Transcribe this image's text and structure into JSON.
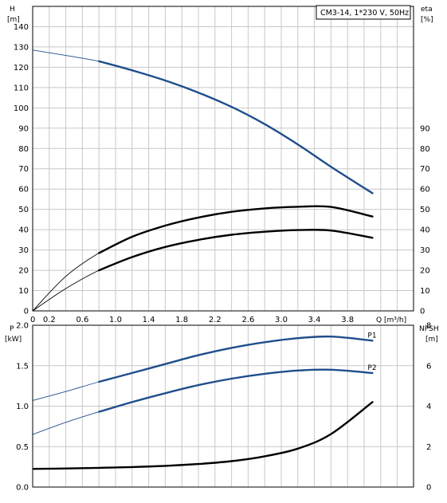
{
  "chart_data": [
    {
      "type": "line",
      "legend": "CM3-14, 1*230 V, 50Hz",
      "x": {
        "label": "Q",
        "unit": "[m³/h]",
        "ticks": [
          "0",
          "0.2",
          "0.6",
          "1.0",
          "1.4",
          "1.8",
          "2.2",
          "2.6",
          "3.0",
          "3.4",
          "3.8"
        ],
        "range": [
          0,
          4.2
        ]
      },
      "y_left": {
        "label": "H",
        "unit": "[m]",
        "ticks": [
          "0",
          "10",
          "20",
          "30",
          "40",
          "50",
          "60",
          "70",
          "80",
          "90",
          "100",
          "110",
          "120",
          "130",
          "140"
        ],
        "range": [
          0,
          150
        ]
      },
      "y_right": {
        "label": "eta",
        "unit": "[%]",
        "ticks": [
          "0",
          "10",
          "20",
          "30",
          "40",
          "50",
          "60",
          "70",
          "80",
          "90"
        ],
        "range": [
          0,
          150
        ]
      },
      "grid": true,
      "series": [
        {
          "axis": "left",
          "color": "#1f4e8c",
          "x": [
            0.0,
            0.8,
            1.2,
            1.6,
            2.0,
            2.4,
            2.8,
            3.2,
            3.6,
            4.1
          ],
          "y": [
            128.5,
            123.0,
            118.5,
            113.5,
            107.5,
            100.5,
            92.0,
            82.0,
            71.0,
            58.0
          ],
          "dense_from": 0.8
        },
        {
          "axis": "right",
          "color": "#000000",
          "x": [
            0.0,
            0.4,
            0.8,
            1.2,
            1.6,
            2.0,
            2.4,
            2.8,
            3.2,
            3.6,
            4.1
          ],
          "y": [
            0.0,
            17.0,
            28.5,
            36.5,
            42.0,
            46.0,
            48.8,
            50.5,
            51.3,
            51.2,
            46.5
          ],
          "dense_from": 0.8
        },
        {
          "axis": "right",
          "color": "#000000",
          "x": [
            0.0,
            0.4,
            0.8,
            1.2,
            1.6,
            2.0,
            2.4,
            2.8,
            3.2,
            3.6,
            4.1
          ],
          "y": [
            0.0,
            11.0,
            20.0,
            26.5,
            31.5,
            35.0,
            37.5,
            39.0,
            39.8,
            39.6,
            36.0
          ],
          "dense_from": 0.8
        }
      ]
    },
    {
      "type": "line",
      "x": {
        "range": [
          0,
          4.2
        ]
      },
      "y_left": {
        "label": "P",
        "unit": "[kW]",
        "ticks": [
          "0.0",
          "0.5",
          "1.0",
          "1.5",
          "2.0"
        ],
        "range": [
          0,
          2.0
        ]
      },
      "y_right": {
        "label": "NPSH",
        "unit": "[m]",
        "ticks": [
          "0",
          "2",
          "4",
          "6",
          "8"
        ],
        "range": [
          0,
          8
        ]
      },
      "grid": true,
      "series": [
        {
          "name": "P1",
          "axis": "left",
          "color": "#1f4e8c",
          "x": [
            -0.1,
            0.4,
            0.8,
            1.2,
            1.6,
            2.0,
            2.4,
            2.8,
            3.2,
            3.6,
            4.1
          ],
          "y": [
            1.07,
            1.18,
            1.3,
            1.41,
            1.52,
            1.63,
            1.72,
            1.79,
            1.84,
            1.86,
            1.81
          ],
          "dense_from": 0.8
        },
        {
          "name": "P2",
          "axis": "left",
          "color": "#1f4e8c",
          "x": [
            -0.1,
            0.4,
            0.8,
            1.2,
            1.6,
            2.0,
            2.4,
            2.8,
            3.2,
            3.6,
            4.1
          ],
          "y": [
            0.65,
            0.8,
            0.93,
            1.05,
            1.16,
            1.26,
            1.34,
            1.4,
            1.44,
            1.45,
            1.41
          ],
          "dense_from": 0.8
        },
        {
          "axis": "right",
          "color": "#000000",
          "x": [
            -0.1,
            0.4,
            0.8,
            1.2,
            1.6,
            2.0,
            2.4,
            2.8,
            3.2,
            3.6,
            4.1
          ],
          "y": [
            0.9,
            0.92,
            0.95,
            0.99,
            1.05,
            1.14,
            1.28,
            1.52,
            1.9,
            2.62,
            4.2
          ]
        }
      ]
    }
  ]
}
